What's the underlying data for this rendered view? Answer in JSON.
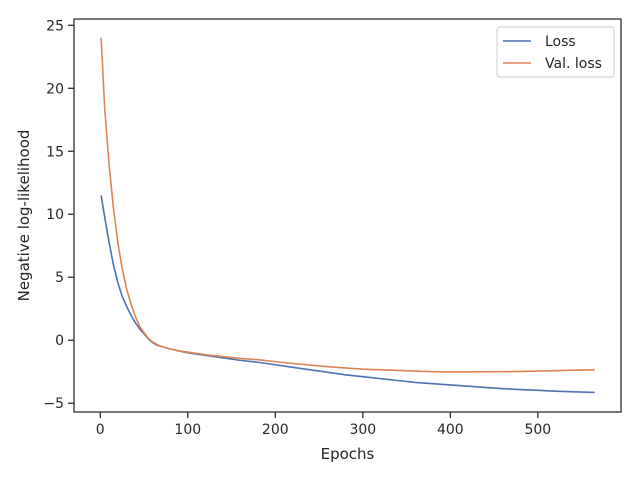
{
  "chart_data": {
    "type": "line",
    "xlabel": "Epochs",
    "ylabel": "Negative log-likelihood",
    "xlim": [
      -30,
      595
    ],
    "ylim": [
      -5.7,
      25.5
    ],
    "xticks": [
      0,
      100,
      200,
      300,
      400,
      500
    ],
    "yticks": [
      -5,
      0,
      5,
      10,
      15,
      20,
      25
    ],
    "grid": false,
    "legend_position": "top-right",
    "series": [
      {
        "name": "Loss",
        "color": "#4c72b0",
        "x": [
          1,
          5,
          10,
          15,
          20,
          25,
          30,
          35,
          40,
          45,
          50,
          55,
          60,
          65,
          70,
          80,
          90,
          100,
          110,
          120,
          140,
          160,
          180,
          200,
          220,
          240,
          260,
          280,
          300,
          320,
          340,
          360,
          380,
          400,
          420,
          440,
          460,
          480,
          500,
          520,
          540,
          565
        ],
        "values": [
          11.5,
          9.8,
          7.8,
          6.0,
          4.6,
          3.5,
          2.7,
          2.0,
          1.4,
          0.9,
          0.5,
          0.1,
          -0.2,
          -0.4,
          -0.5,
          -0.7,
          -0.85,
          -1.0,
          -1.1,
          -1.2,
          -1.4,
          -1.6,
          -1.75,
          -1.95,
          -2.15,
          -2.35,
          -2.55,
          -2.75,
          -2.9,
          -3.05,
          -3.2,
          -3.35,
          -3.45,
          -3.55,
          -3.65,
          -3.75,
          -3.85,
          -3.92,
          -3.98,
          -4.05,
          -4.1,
          -4.15
        ]
      },
      {
        "name": "Val. loss",
        "color": "#dd8452",
        "x": [
          1,
          5,
          10,
          15,
          20,
          25,
          30,
          35,
          40,
          45,
          50,
          55,
          60,
          65,
          70,
          80,
          90,
          100,
          110,
          120,
          140,
          160,
          180,
          200,
          220,
          240,
          260,
          280,
          300,
          320,
          340,
          360,
          380,
          400,
          420,
          440,
          460,
          480,
          500,
          520,
          540,
          565
        ],
        "values": [
          24.0,
          18.5,
          14.0,
          10.5,
          7.8,
          5.7,
          4.1,
          2.9,
          1.9,
          1.1,
          0.6,
          0.15,
          -0.15,
          -0.35,
          -0.5,
          -0.7,
          -0.85,
          -0.95,
          -1.05,
          -1.15,
          -1.3,
          -1.45,
          -1.55,
          -1.7,
          -1.85,
          -1.98,
          -2.1,
          -2.2,
          -2.3,
          -2.35,
          -2.4,
          -2.45,
          -2.5,
          -2.52,
          -2.52,
          -2.5,
          -2.5,
          -2.48,
          -2.45,
          -2.42,
          -2.38,
          -2.35
        ]
      }
    ]
  }
}
